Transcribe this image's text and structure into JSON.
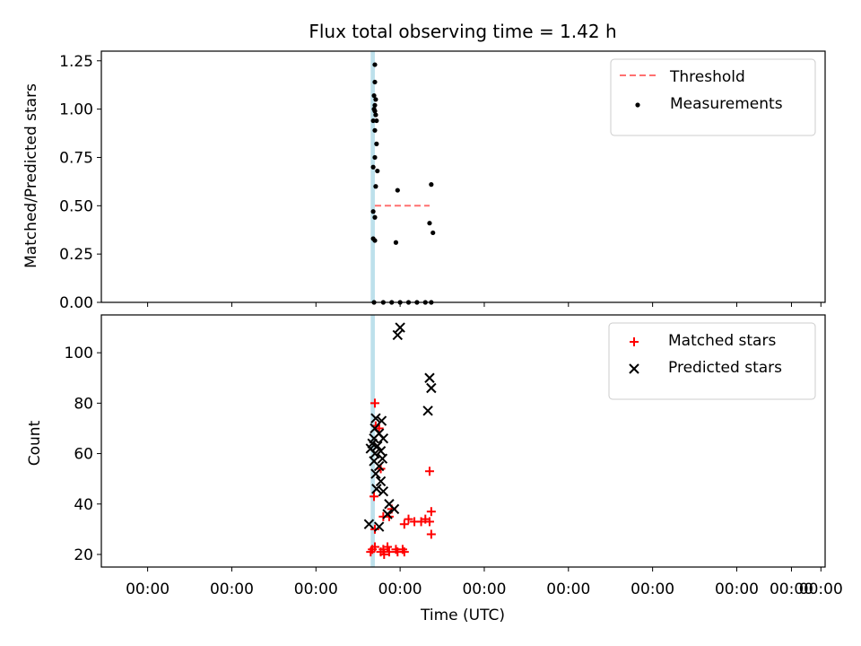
{
  "chart_data": {
    "type": "scatter",
    "title": "Flux total observing time = 1.42 h",
    "panels": [
      {
        "name": "ratio",
        "ylabel": "Matched/Predicted stars",
        "ylim": [
          0,
          1.3
        ],
        "yticks": [
          0.0,
          0.25,
          0.5,
          0.75,
          1.0,
          1.25
        ],
        "ytick_labels": [
          "0.00",
          "0.25",
          "0.50",
          "0.75",
          "1.00",
          "1.25"
        ],
        "legend": {
          "placement": "top-right",
          "entries": [
            {
              "label": "Threshold",
              "marker": "dashed-line",
              "color": "#ff7070"
            },
            {
              "label": "Measurements",
              "marker": "dot",
              "color": "#000000"
            }
          ]
        },
        "threshold": {
          "value": 0.5,
          "x": [
            -0.05,
            0.6
          ]
        },
        "series": [
          {
            "name": "Measurements",
            "color": "#000000",
            "points": [
              [
                -0.05,
                1.23
              ],
              [
                -0.05,
                1.14
              ],
              [
                -0.06,
                1.07
              ],
              [
                -0.04,
                1.05
              ],
              [
                -0.05,
                1.02
              ],
              [
                -0.06,
                1.0
              ],
              [
                -0.05,
                0.99
              ],
              [
                -0.04,
                0.97
              ],
              [
                -0.07,
                0.94
              ],
              [
                -0.03,
                0.94
              ],
              [
                -0.05,
                0.89
              ],
              [
                -0.03,
                0.82
              ],
              [
                -0.05,
                0.75
              ],
              [
                -0.07,
                0.7
              ],
              [
                -0.02,
                0.68
              ],
              [
                -0.04,
                0.6
              ],
              [
                0.22,
                0.58
              ],
              [
                0.62,
                0.61
              ],
              [
                -0.07,
                0.47
              ],
              [
                -0.05,
                0.44
              ],
              [
                -0.07,
                0.33
              ],
              [
                -0.05,
                0.32
              ],
              [
                0.2,
                0.31
              ],
              [
                0.6,
                0.41
              ],
              [
                0.64,
                0.36
              ],
              [
                -0.06,
                0.0
              ],
              [
                0.05,
                0.0
              ],
              [
                0.15,
                0.0
              ],
              [
                0.25,
                0.0
              ],
              [
                0.35,
                0.0
              ],
              [
                0.45,
                0.0
              ],
              [
                0.55,
                0.0
              ],
              [
                0.62,
                0.0
              ]
            ]
          }
        ]
      },
      {
        "name": "counts",
        "ylabel": "Count",
        "ylim": [
          15,
          115
        ],
        "yticks": [
          20,
          40,
          60,
          80,
          100
        ],
        "ytick_labels": [
          "20",
          "40",
          "60",
          "80",
          "100"
        ],
        "legend": {
          "placement": "top-right",
          "entries": [
            {
              "label": "Matched stars",
              "marker": "plus",
              "color": "#ff0000"
            },
            {
              "label": "Predicted stars",
              "marker": "x",
              "color": "#000000"
            }
          ]
        },
        "series": [
          {
            "name": "Matched stars",
            "color": "#ff0000",
            "points": [
              [
                -0.05,
                80
              ],
              [
                -0.04,
                71
              ],
              [
                0.0,
                70
              ],
              [
                0.02,
                54
              ],
              [
                0.6,
                53
              ],
              [
                -0.06,
                43
              ],
              [
                0.15,
                38
              ],
              [
                0.62,
                37
              ],
              [
                0.05,
                35
              ],
              [
                0.12,
                35
              ],
              [
                0.35,
                34
              ],
              [
                0.42,
                33
              ],
              [
                0.5,
                33
              ],
              [
                0.55,
                34
              ],
              [
                0.6,
                33
              ],
              [
                0.3,
                32
              ],
              [
                -0.05,
                30
              ],
              [
                0.62,
                28
              ],
              [
                -0.05,
                23
              ],
              [
                0.1,
                23
              ],
              [
                -0.08,
                22
              ],
              [
                0.05,
                22
              ],
              [
                0.2,
                22
              ],
              [
                0.28,
                22
              ],
              [
                -0.1,
                21
              ],
              [
                0.02,
                21
              ],
              [
                0.12,
                21
              ],
              [
                0.22,
                21
              ],
              [
                0.3,
                21
              ],
              [
                0.06,
                20
              ]
            ]
          },
          {
            "name": "Predicted stars",
            "color": "#000000",
            "points": [
              [
                0.25,
                110
              ],
              [
                0.22,
                107
              ],
              [
                0.6,
                90
              ],
              [
                0.62,
                86
              ],
              [
                0.58,
                77
              ],
              [
                -0.04,
                74
              ],
              [
                0.03,
                73
              ],
              [
                -0.05,
                70
              ],
              [
                0.0,
                68
              ],
              [
                -0.06,
                66
              ],
              [
                0.05,
                66
              ],
              [
                -0.08,
                64
              ],
              [
                -0.02,
                63
              ],
              [
                -0.1,
                62
              ],
              [
                0.02,
                61
              ],
              [
                -0.05,
                60
              ],
              [
                0.04,
                58
              ],
              [
                -0.06,
                57
              ],
              [
                0.0,
                55
              ],
              [
                -0.04,
                52
              ],
              [
                0.02,
                49
              ],
              [
                -0.03,
                46
              ],
              [
                0.05,
                45
              ],
              [
                0.12,
                40
              ],
              [
                0.18,
                38
              ],
              [
                0.1,
                36
              ],
              [
                -0.12,
                32
              ],
              [
                0.0,
                31
              ]
            ]
          }
        ]
      }
    ],
    "x_axis": {
      "label": "Time (UTC)",
      "xlim": [
        -3.3,
        5.3
      ],
      "ticks": [
        -2.75,
        -1.75,
        -0.75,
        0.25,
        1.25,
        2.25,
        3.25,
        4.25,
        5.25
      ],
      "tick_labels": [
        "00:00",
        "00:00",
        "00:00",
        "00:00",
        "00:00",
        "00:00",
        "00:00",
        "00:00",
        "00:00",
        "00:00"
      ],
      "extra_tick": 4.9
    },
    "span": {
      "x": [
        -0.1,
        -0.05
      ],
      "color": "#add8e6"
    },
    "grid": false
  }
}
